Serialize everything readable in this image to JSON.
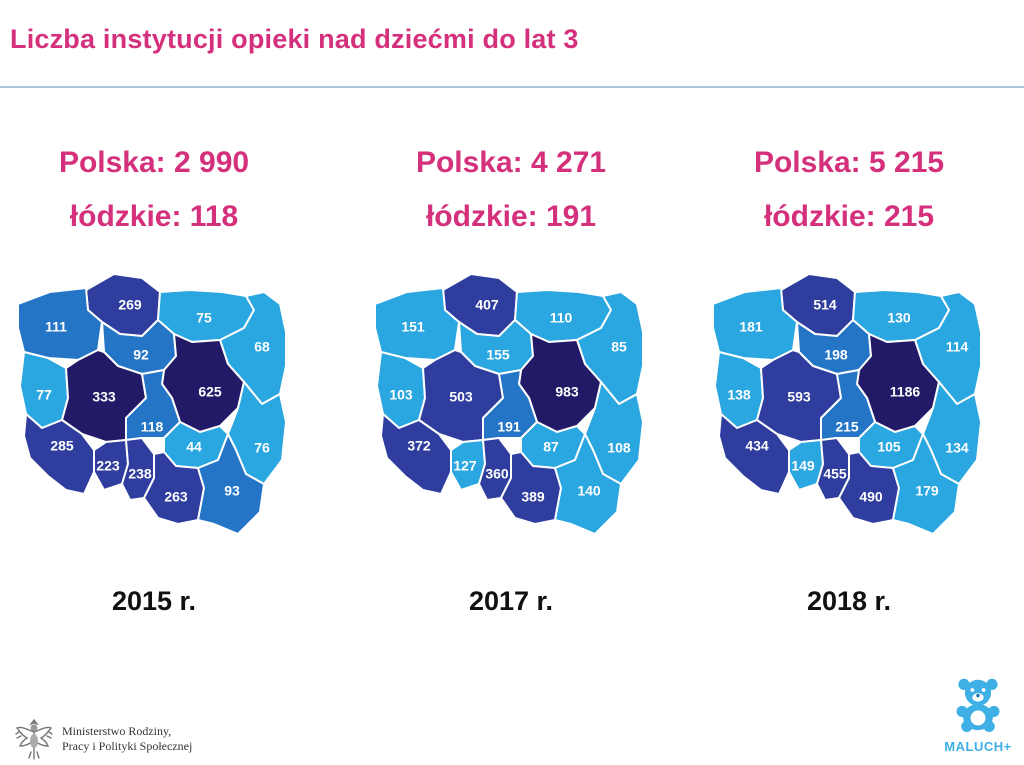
{
  "title": "Liczba instytucji opieki nad dziećmi do lat 3",
  "maps": [
    {
      "year_label": "2015 r.",
      "national_label": "Polska: 2 990",
      "regional_label": "łódzkie: 118",
      "values": {
        "pomorskie": 269,
        "zachodniopomorskie": 111,
        "warminsko_mazurskie": 75,
        "podlaskie": 68,
        "kujawsko_pomorskie": 92,
        "lubuskie": 77,
        "wielkopolskie": 333,
        "mazowieckie": 625,
        "lodzkie": 118,
        "lubelskie": 76,
        "dolnoslaskie": 285,
        "opolskie": 223,
        "slaskie": 238,
        "swietokrzyskie": 44,
        "malopolskie": 263,
        "podkarpackie": 93
      }
    },
    {
      "year_label": "2017 r.",
      "national_label": "Polska: 4 271",
      "regional_label": "łódzkie: 191",
      "values": {
        "pomorskie": 407,
        "zachodniopomorskie": 151,
        "warminsko_mazurskie": 110,
        "podlaskie": 85,
        "kujawsko_pomorskie": 155,
        "lubuskie": 103,
        "wielkopolskie": 503,
        "mazowieckie": 983,
        "lodzkie": 191,
        "lubelskie": 108,
        "dolnoslaskie": 372,
        "opolskie": 127,
        "slaskie": 360,
        "swietokrzyskie": 87,
        "malopolskie": 389,
        "podkarpackie": 140
      }
    },
    {
      "year_label": "2018 r.",
      "national_label": "Polska: 5 215",
      "regional_label": "łódzkie: 215",
      "values": {
        "pomorskie": 514,
        "zachodniopomorskie": 181,
        "warminsko_mazurskie": 130,
        "podlaskie": 114,
        "kujawsko_pomorskie": 198,
        "lubuskie": 138,
        "wielkopolskie": 593,
        "mazowieckie": 1186,
        "lodzkie": 215,
        "lubelskie": 134,
        "dolnoslaskie": 434,
        "opolskie": 149,
        "slaskie": 455,
        "swietokrzyskie": 105,
        "malopolskie": 490,
        "podkarpackie": 179
      }
    }
  ],
  "color_scale": [
    "#2aa6e0",
    "#2475c6",
    "#2e3d9e",
    "#221a66"
  ],
  "footer": {
    "ministry_line1": "Ministerstwo Rodziny,",
    "ministry_line2": "Pracy i Polityki Społecznej",
    "brand": "MALUCH+"
  },
  "icons": {
    "ministry_logo": "eagle-emblem-icon",
    "brand_logo": "teddy-bear-icon"
  },
  "colors": {
    "accent": "#d4307c",
    "rule": "#a9c7dd",
    "brand": "#3fb0e5"
  }
}
